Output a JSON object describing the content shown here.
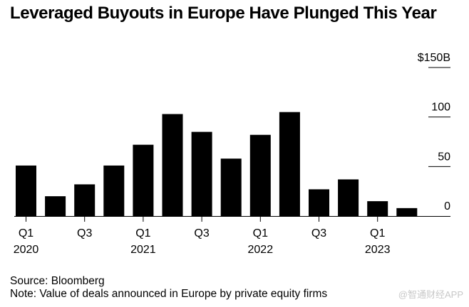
{
  "chart_data": {
    "type": "bar",
    "title": "Leveraged Buyouts in Europe Have Plunged This Year",
    "categories": [
      "Q1 2020",
      "Q2 2020",
      "Q3 2020",
      "Q4 2020",
      "Q1 2021",
      "Q2 2021",
      "Q3 2021",
      "Q4 2021",
      "Q1 2022",
      "Q2 2022",
      "Q3 2022",
      "Q4 2022",
      "Q1 2023",
      "Q2 2023"
    ],
    "values": [
      51,
      20,
      32,
      51,
      72,
      103,
      85,
      58,
      82,
      105,
      27,
      37,
      15,
      8
    ],
    "x_tick_labels": [
      {
        "index": 0,
        "quarter": "Q1",
        "year": "2020"
      },
      {
        "index": 2,
        "quarter": "Q3",
        "year": ""
      },
      {
        "index": 4,
        "quarter": "Q1",
        "year": "2021"
      },
      {
        "index": 6,
        "quarter": "Q3",
        "year": ""
      },
      {
        "index": 8,
        "quarter": "Q1",
        "year": "2022"
      },
      {
        "index": 10,
        "quarter": "Q3",
        "year": ""
      },
      {
        "index": 12,
        "quarter": "Q1",
        "year": "2023"
      }
    ],
    "y_ticks": [
      {
        "value": 150,
        "label": "$150B"
      },
      {
        "value": 100,
        "label": "100"
      },
      {
        "value": 50,
        "label": "50"
      },
      {
        "value": 0,
        "label": "0"
      }
    ],
    "ylim": [
      0,
      150
    ],
    "xlabel": "",
    "ylabel": "",
    "grid": true,
    "bar_color": "#000000"
  },
  "footer": {
    "source": "Source: Bloomberg",
    "note": "Note: Value of deals announced in Europe by private equity firms"
  },
  "watermark": "@智通财经APP"
}
